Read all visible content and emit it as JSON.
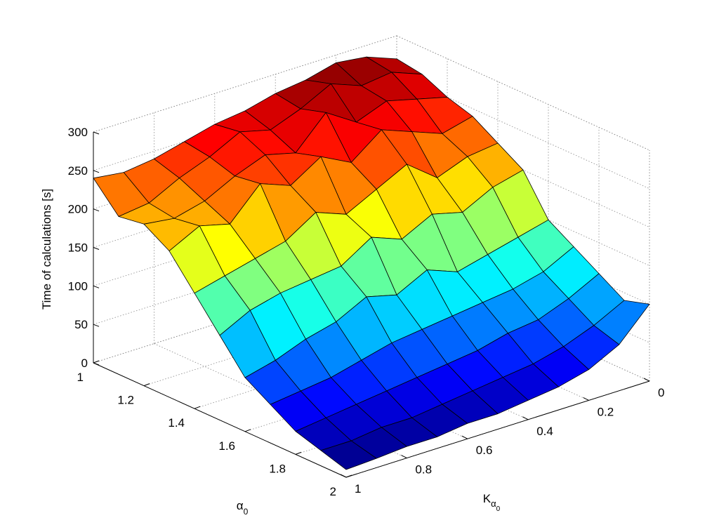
{
  "chart_data": {
    "type": "surface",
    "x_label": {
      "base": "α",
      "sub": "0"
    },
    "y_label": {
      "base": "K",
      "sub": "α",
      "subsub": "0"
    },
    "z_label": "Time of calculations [s]",
    "x": [
      1,
      1.1,
      1.2,
      1.3,
      1.4,
      1.5,
      1.6,
      1.7,
      1.8,
      1.9,
      2
    ],
    "y": [
      0,
      0.1,
      0.2,
      0.3,
      0.4,
      0.5,
      0.6,
      0.7,
      0.8,
      0.9,
      1
    ],
    "z": [
      [
        270,
        285,
        290,
        280,
        275,
        265,
        260,
        250,
        240,
        235,
        240
      ],
      [
        265,
        280,
        275,
        290,
        270,
        255,
        265,
        245,
        230,
        210,
        205
      ],
      [
        250,
        260,
        270,
        255,
        280,
        240,
        250,
        235,
        215,
        205,
        210
      ],
      [
        240,
        230,
        245,
        260,
        230,
        250,
        225,
        240,
        200,
        210,
        190
      ],
      [
        220,
        215,
        200,
        230,
        210,
        190,
        205,
        180,
        170,
        160,
        150
      ],
      [
        200,
        190,
        170,
        180,
        160,
        175,
        150,
        145,
        140,
        130,
        110
      ],
      [
        150,
        140,
        130,
        120,
        135,
        115,
        125,
        105,
        95,
        80,
        70
      ],
      [
        130,
        110,
        100,
        95,
        90,
        85,
        80,
        70,
        60,
        55,
        50
      ],
      [
        110,
        90,
        75,
        70,
        60,
        55,
        50,
        45,
        40,
        35,
        30
      ],
      [
        90,
        70,
        55,
        45,
        40,
        35,
        30,
        25,
        25,
        20,
        20
      ],
      [
        100,
        60,
        40,
        30,
        25,
        20,
        20,
        15,
        15,
        12,
        10
      ]
    ],
    "colormap": "jet",
    "xlim": [
      1,
      2
    ],
    "ylim": [
      0,
      1
    ],
    "zlim": [
      0,
      300
    ],
    "xticks": [
      1,
      1.2,
      1.4,
      1.6,
      1.8,
      2
    ],
    "yticks": [
      0,
      0.2,
      0.4,
      0.6,
      0.8,
      1
    ],
    "zticks": [
      0,
      50,
      100,
      150,
      200,
      250,
      300
    ],
    "grid": true
  }
}
